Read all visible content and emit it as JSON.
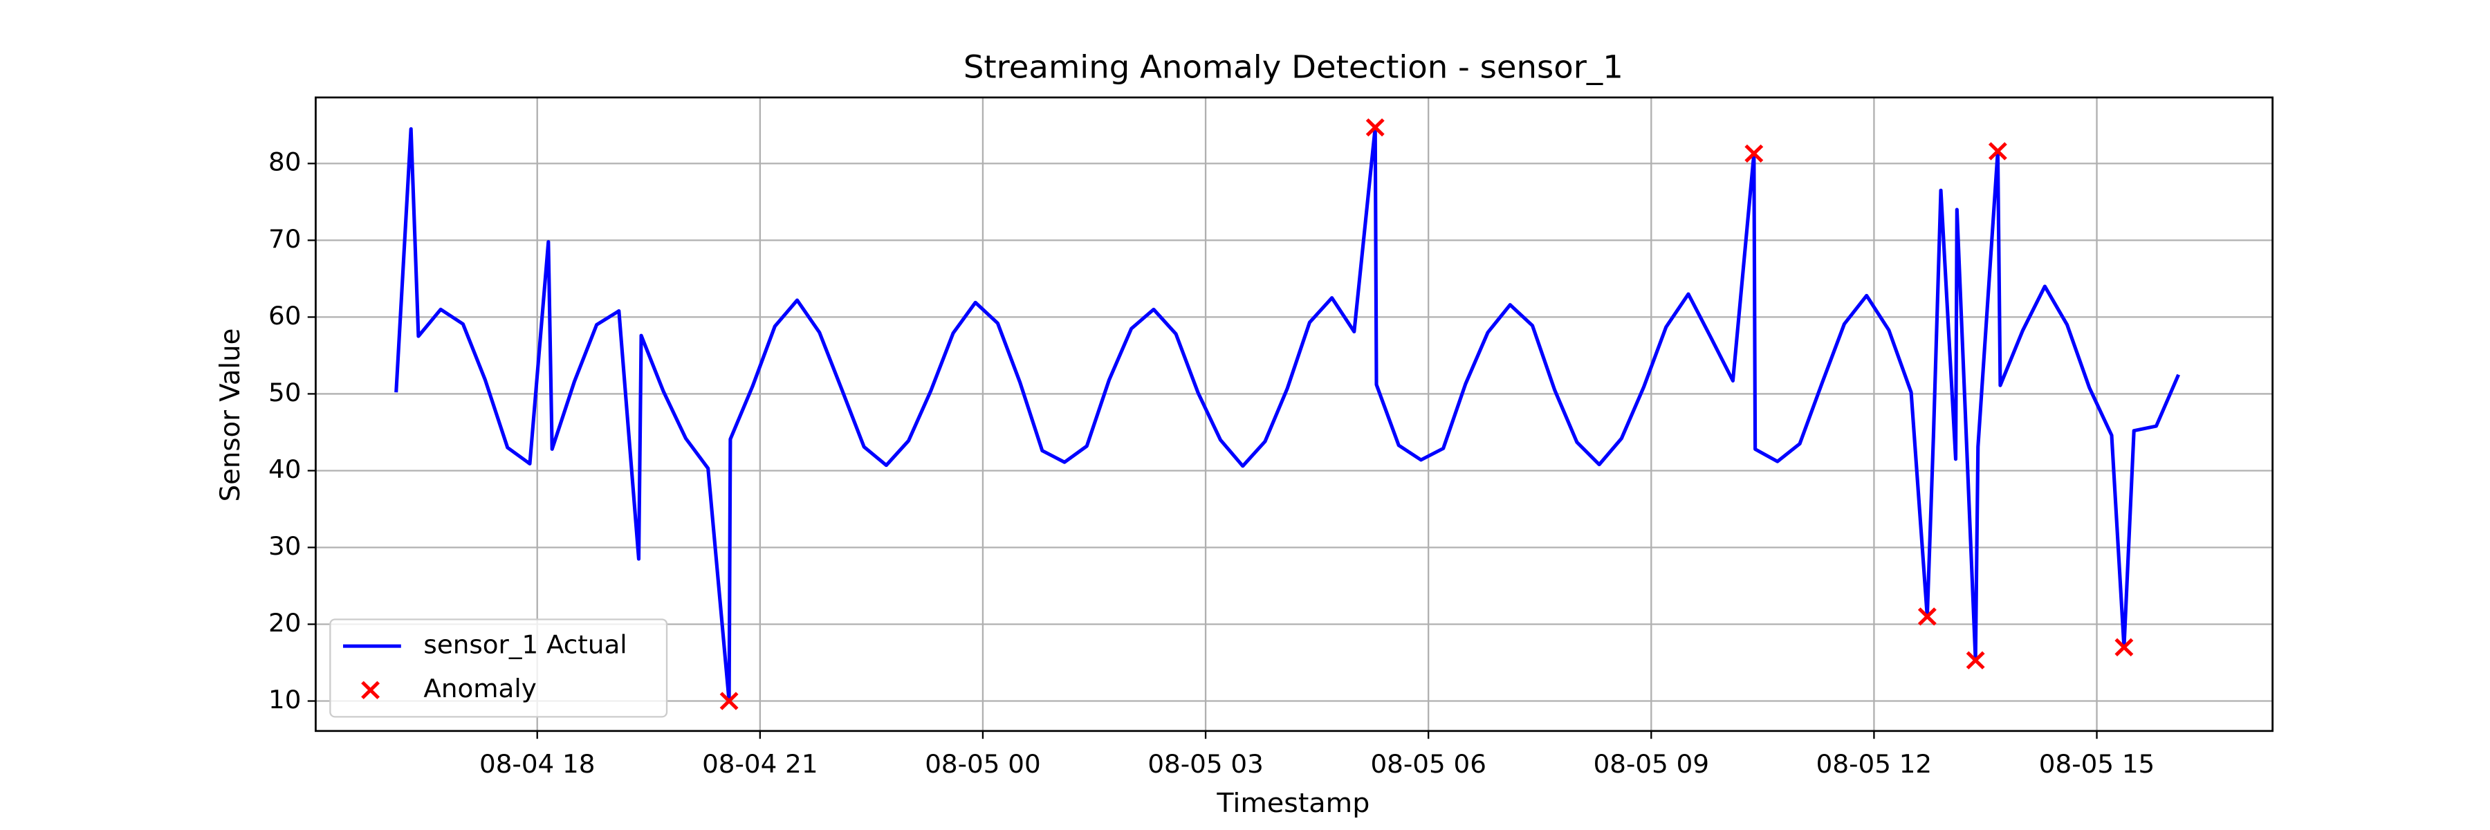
{
  "chart_data": {
    "type": "line",
    "title": "Streaming Anomaly Detection - sensor_1",
    "x_label": "Timestamp",
    "y_label": "Sensor Value",
    "xlim": [
      "08-04 15:01",
      "08-05 17:22"
    ],
    "ylim": [
      6.1,
      88.6
    ],
    "xticks": [
      {
        "value": "08-04 18:00",
        "label": "08-04 18"
      },
      {
        "value": "08-04 21:00",
        "label": "08-04 21"
      },
      {
        "value": "08-05 00:00",
        "label": "08-05 00"
      },
      {
        "value": "08-05 03:00",
        "label": "08-05 03"
      },
      {
        "value": "08-05 06:00",
        "label": "08-05 06"
      },
      {
        "value": "08-05 09:00",
        "label": "08-05 09"
      },
      {
        "value": "08-05 12:00",
        "label": "08-05 12"
      },
      {
        "value": "08-05 15:00",
        "label": "08-05 15"
      }
    ],
    "yticks": [
      10,
      20,
      30,
      40,
      50,
      60,
      70,
      80
    ],
    "grid": true,
    "legend": "lower left",
    "series": [
      {
        "name": "sensor_1 Actual",
        "type": "line",
        "color": "#0000ff",
        "x": [
          "08-04 16:06",
          "08-04 16:18",
          "08-04 16:24",
          "08-04 16:42",
          "08-04 17:00",
          "08-04 17:18",
          "08-04 17:36",
          "08-04 17:54",
          "08-04 18:09",
          "08-04 18:12",
          "08-04 18:30",
          "08-04 18:48",
          "08-04 19:06",
          "08-04 19:22",
          "08-04 19:24",
          "08-04 19:42",
          "08-04 20:00",
          "08-04 20:18",
          "08-04 20:35",
          "08-04 20:36",
          "08-04 20:54",
          "08-04 21:12",
          "08-04 21:30",
          "08-04 21:48",
          "08-04 22:06",
          "08-04 22:24",
          "08-04 22:42",
          "08-04 23:00",
          "08-04 23:18",
          "08-04 23:36",
          "08-04 23:54",
          "08-05 00:12",
          "08-05 00:30",
          "08-05 00:48",
          "08-05 01:06",
          "08-05 01:24",
          "08-05 01:42",
          "08-05 02:00",
          "08-05 02:18",
          "08-05 02:36",
          "08-05 02:54",
          "08-05 03:12",
          "08-05 03:30",
          "08-05 03:48",
          "08-05 04:06",
          "08-05 04:24",
          "08-05 04:42",
          "08-05 05:00",
          "08-05 05:17",
          "08-05 05:18",
          "08-05 05:36",
          "08-05 05:54",
          "08-05 06:12",
          "08-05 06:30",
          "08-05 06:48",
          "08-05 07:06",
          "08-05 07:24",
          "08-05 07:42",
          "08-05 08:00",
          "08-05 08:18",
          "08-05 08:36",
          "08-05 08:54",
          "08-05 09:12",
          "08-05 09:30",
          "08-05 09:48",
          "08-05 10:06",
          "08-05 10:23",
          "08-05 10:24",
          "08-05 10:42",
          "08-05 11:00",
          "08-05 11:18",
          "08-05 11:36",
          "08-05 11:54",
          "08-05 12:12",
          "08-05 12:30",
          "08-05 12:43",
          "08-05 12:48",
          "08-05 12:54",
          "08-05 13:06",
          "08-05 13:07",
          "08-05 13:22",
          "08-05 13:24",
          "08-05 13:40",
          "08-05 13:42",
          "08-05 14:00",
          "08-05 14:18",
          "08-05 14:36",
          "08-05 14:54",
          "08-05 15:12",
          "08-05 15:22",
          "08-05 15:30",
          "08-05 15:48",
          "08-05 16:06"
        ],
        "values": [
          50.2,
          84.5,
          57.5,
          61.0,
          59.1,
          51.8,
          43.0,
          40.9,
          69.8,
          42.8,
          51.6,
          59.0,
          60.8,
          28.5,
          57.6,
          50.3,
          44.2,
          40.3,
          10.0,
          44.1,
          51.0,
          58.8,
          62.2,
          58.0,
          50.6,
          43.1,
          40.7,
          43.9,
          50.4,
          57.9,
          61.9,
          59.2,
          51.5,
          42.6,
          41.1,
          43.2,
          51.8,
          58.5,
          61.0,
          57.8,
          50.1,
          44.0,
          40.6,
          43.8,
          50.7,
          59.3,
          62.5,
          58.1,
          84.7,
          51.2,
          43.3,
          41.4,
          42.9,
          51.3,
          58.0,
          61.6,
          58.9,
          50.5,
          43.7,
          40.8,
          44.2,
          50.9,
          58.7,
          63.0,
          57.4,
          51.7,
          81.3,
          42.8,
          41.2,
          43.5,
          51.4,
          59.1,
          62.8,
          58.3,
          50.2,
          21.0,
          44.4,
          76.5,
          41.5,
          74.0,
          15.3,
          43.1,
          81.6,
          51.1,
          58.2,
          64.0,
          59.0,
          50.8,
          44.6,
          17.0,
          45.2,
          45.8,
          52.5
        ]
      },
      {
        "name": "Anomaly",
        "type": "scatter",
        "marker": "x",
        "color": "#ff0000",
        "x": [
          "08-04 20:35",
          "08-05 05:17",
          "08-05 10:23",
          "08-05 12:43",
          "08-05 13:22",
          "08-05 13:40",
          "08-05 15:22"
        ],
        "values": [
          10.0,
          84.7,
          81.3,
          21.0,
          15.3,
          81.6,
          17.0
        ]
      }
    ]
  }
}
